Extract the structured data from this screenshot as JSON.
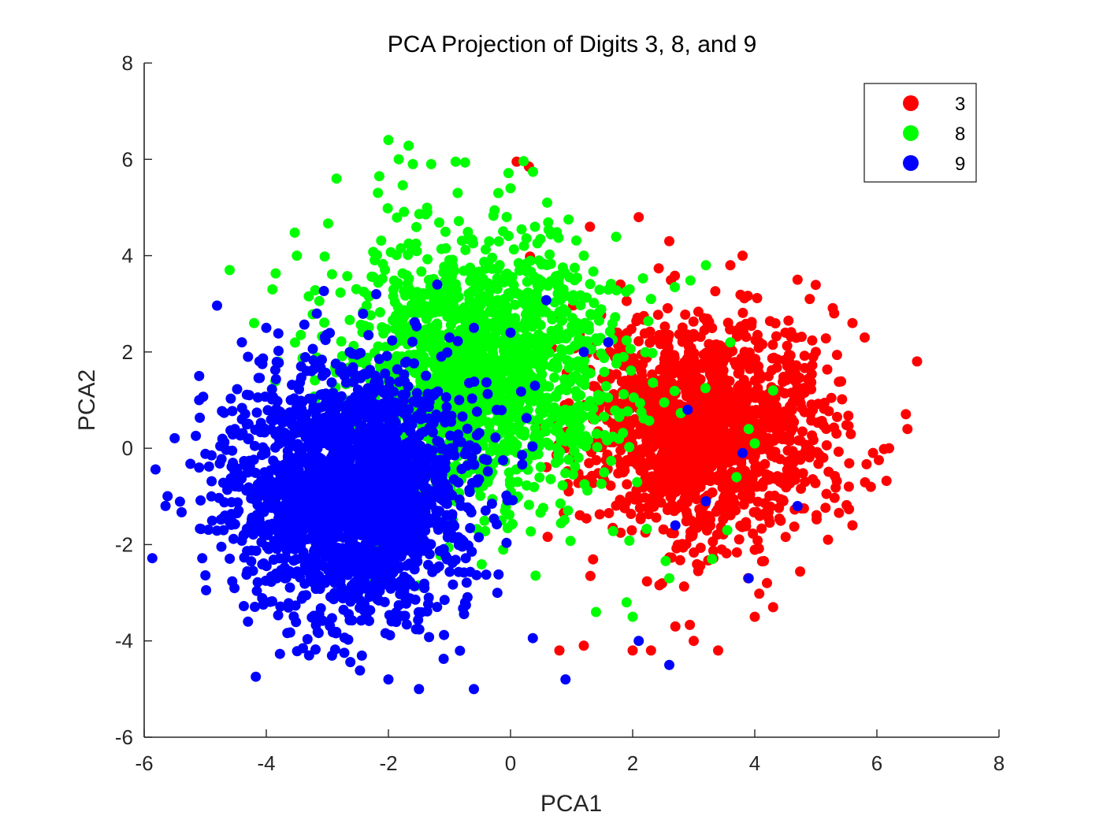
{
  "chart_data": {
    "type": "scatter",
    "title": "PCA Projection of Digits 3, 8, and 9",
    "xlabel": "PCA1",
    "ylabel": "PCA2",
    "xlim": [
      -6,
      8
    ],
    "ylim": [
      -6,
      8
    ],
    "xticks": [
      -6,
      -4,
      -2,
      0,
      2,
      4,
      6,
      8
    ],
    "yticks": [
      -6,
      -4,
      -2,
      0,
      2,
      4,
      6,
      8
    ],
    "xtick_labels": [
      "-6",
      "-4",
      "-2",
      "0",
      "2",
      "4",
      "6",
      "8"
    ],
    "ytick_labels": [
      "-6",
      "-4",
      "-2",
      "0",
      "2",
      "4",
      "6",
      "8"
    ],
    "grid": false,
    "legend_position": "top-right",
    "marker": "filled-circle",
    "series": [
      {
        "name": "3",
        "color": "#ff0000",
        "cluster": {
          "center": [
            3.2,
            0.4
          ],
          "spread": [
            1.25,
            1.45
          ],
          "count": 1600
        },
        "points": [
          [
            0.1,
            5.95
          ],
          [
            0.3,
            5.85
          ],
          [
            6.5,
            0.4
          ],
          [
            6.2,
            0.0
          ],
          [
            5.9,
            -0.8
          ],
          [
            5.8,
            2.3
          ],
          [
            5.6,
            2.6
          ],
          [
            5.3,
            2.8
          ],
          [
            4.9,
            3.1
          ],
          [
            4.7,
            3.5
          ],
          [
            3.8,
            4.0
          ],
          [
            2.6,
            4.3
          ],
          [
            2.1,
            4.8
          ],
          [
            1.3,
            4.6
          ],
          [
            2.0,
            -4.2
          ],
          [
            2.3,
            -4.2
          ],
          [
            3.4,
            -4.2
          ],
          [
            4.0,
            -3.5
          ],
          [
            4.3,
            -3.3
          ],
          [
            5.2,
            -1.9
          ],
          [
            5.6,
            -1.6
          ],
          [
            3.0,
            -4.0
          ],
          [
            1.2,
            -4.1
          ],
          [
            4.5,
            2.4
          ],
          [
            5.0,
            2.0
          ],
          [
            4.2,
            -2.8
          ],
          [
            3.6,
            3.8
          ],
          [
            1.8,
            3.4
          ],
          [
            0.8,
            -4.2
          ],
          [
            2.7,
            -3.7
          ]
        ]
      },
      {
        "name": "8",
        "color": "#00ff00",
        "cluster": {
          "center": [
            -0.5,
            1.6
          ],
          "spread": [
            1.45,
            1.8
          ],
          "count": 1600
        },
        "points": [
          [
            -2.0,
            6.4
          ],
          [
            -4.6,
            3.7
          ],
          [
            -1.6,
            5.9
          ],
          [
            -1.3,
            5.9
          ],
          [
            -0.9,
            5.95
          ],
          [
            -2.85,
            5.6
          ],
          [
            -2.15,
            5.65
          ],
          [
            -0.2,
            5.3
          ],
          [
            0.0,
            5.4
          ],
          [
            0.6,
            5.1
          ],
          [
            0.95,
            4.75
          ],
          [
            3.2,
            3.8
          ],
          [
            4.3,
            1.2
          ],
          [
            3.9,
            0.4
          ],
          [
            3.7,
            -0.6
          ],
          [
            3.55,
            -1.7
          ],
          [
            3.3,
            -2.3
          ],
          [
            2.6,
            -2.7
          ],
          [
            1.4,
            -3.4
          ],
          [
            1.9,
            -3.2
          ],
          [
            -3.5,
            4.0
          ],
          [
            -3.9,
            3.3
          ],
          [
            -4.2,
            2.6
          ],
          [
            -3.8,
            1.8
          ],
          [
            0.4,
            4.6
          ],
          [
            1.2,
            4.0
          ],
          [
            2.3,
            3.1
          ],
          [
            3.6,
            2.2
          ],
          [
            4.0,
            0.1
          ],
          [
            2.0,
            -3.5
          ]
        ]
      },
      {
        "name": "9",
        "color": "#0000ff",
        "cluster": {
          "center": [
            -2.6,
            -0.9
          ],
          "spread": [
            1.25,
            1.65
          ],
          "count": 2200
        },
        "points": [
          [
            -5.1,
            1.5
          ],
          [
            -5.1,
            1.0
          ],
          [
            -5.1,
            -0.4
          ],
          [
            -4.9,
            -1.0
          ],
          [
            -4.7,
            -1.7
          ],
          [
            -4.4,
            2.2
          ],
          [
            -4.3,
            1.9
          ],
          [
            -4.0,
            2.5
          ],
          [
            -2.2,
            3.2
          ],
          [
            -1.2,
            3.4
          ],
          [
            -1.0,
            2.3
          ],
          [
            -0.6,
            2.5
          ],
          [
            0.0,
            2.4
          ],
          [
            0.4,
            1.3
          ],
          [
            1.2,
            2.0
          ],
          [
            1.6,
            2.2
          ],
          [
            2.9,
            0.8
          ],
          [
            3.8,
            -0.1
          ],
          [
            4.7,
            -1.2
          ],
          [
            3.9,
            -2.7
          ],
          [
            2.6,
            -4.5
          ],
          [
            2.1,
            -4.0
          ],
          [
            -1.5,
            -5.0
          ],
          [
            -0.6,
            -5.0
          ],
          [
            -2.0,
            -4.8
          ],
          [
            -3.3,
            -4.3
          ],
          [
            -4.3,
            -3.6
          ],
          [
            0.9,
            -4.8
          ],
          [
            2.7,
            -1.6
          ],
          [
            3.2,
            -1.1
          ]
        ]
      }
    ]
  }
}
